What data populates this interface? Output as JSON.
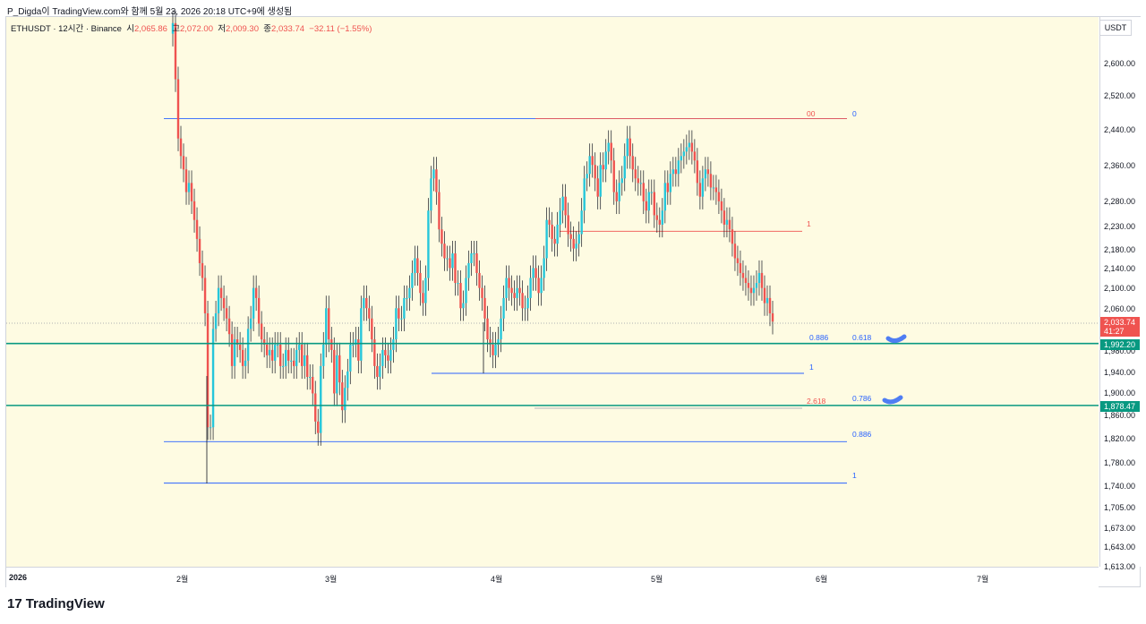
{
  "header": {
    "text": "P_Digda이 TradingView.com와 함께 5월 23, 2026 20:18 UTC+9에 생성됨"
  },
  "legend": {
    "symbol": "ETHUSDT · 12시간 · Binance",
    "open_label": "시",
    "open": "2,065.86",
    "high_label": "고",
    "high": "2,072.00",
    "low_label": "저",
    "low": "2,009.30",
    "close_label": "종",
    "close": "2,033.74",
    "change": "−32.11 (−1.55%)"
  },
  "price_axis": {
    "currency": "USDT",
    "ticks": [
      "2,600.00",
      "2,520.00",
      "2,440.00",
      "2,360.00",
      "2,280.00",
      "2,230.00",
      "2,180.00",
      "2,140.00",
      "2,100.00",
      "2,060.00",
      "1,980.00",
      "1,940.00",
      "1,900.00",
      "1,860.00",
      "1,820.00",
      "1,780.00",
      "1,740.00",
      "1,705.00",
      "1,673.00",
      "1,643.00",
      "1,613.00"
    ],
    "last_price": "2,033.74",
    "countdown": "41:27",
    "line1_price": "1,992.20",
    "line2_price": "1,878.47"
  },
  "time_axis": {
    "labels": [
      "2026",
      "2월",
      "3월",
      "4월",
      "5월",
      "6월",
      "7월"
    ]
  },
  "fib_labels": {
    "upper_zero_left": "00",
    "upper_zero_right": "0",
    "upper_one": "1",
    "mid_0886": "0.886",
    "mid_0618": "0.618",
    "mid_one": "1",
    "mid_2618": "2.618",
    "mid_0786": "0.786",
    "low_0886": "0.886",
    "low_one": "1"
  },
  "footer": {
    "brand": "TradingView",
    "logo": "17"
  },
  "colors": {
    "up": "#26c6da",
    "down": "#ef5350",
    "hline": "#089981",
    "fib_blue": "#2962ff",
    "fib_red": "#ef5350",
    "plot_bg": "#fefbe2",
    "marker": "#4f7df3"
  },
  "chart_data": {
    "type": "candlestick",
    "symbol": "ETHUSDT",
    "interval": "12시간",
    "exchange": "Binance",
    "log_scale": true,
    "ylim": [
      1613,
      2660
    ],
    "horizontal_lines": [
      1992.2,
      1878.47
    ],
    "fib_levels_upper": [
      2466,
      2216
    ],
    "fib_levels_lower": [
      2466,
      1815,
      1745
    ],
    "candles_close": [
      2700,
      2560,
      2420,
      2380,
      2350,
      2300,
      2320,
      2280,
      2240,
      2200,
      2150,
      2120,
      2050,
      1840,
      1840,
      2020,
      2050,
      2100,
      2080,
      2060,
      2040,
      2010,
      1950,
      2000,
      1990,
      1980,
      1950,
      1960,
      2020,
      2040,
      2100,
      2080,
      2030,
      2000,
      1990,
      1970,
      1980,
      1960,
      1990,
      1990,
      1950,
      1950,
      1980,
      1960,
      1960,
      1950,
      1980,
      1990,
      1950,
      1970,
      1930,
      1930,
      1900,
      1850,
      1830,
      1950,
      1990,
      2060,
      2000,
      1980,
      1900,
      1970,
      1920,
      1870,
      1910,
      1940,
      1990,
      1990,
      2000,
      1960,
      2060,
      2080,
      2060,
      2040,
      2000,
      1950,
      1930,
      1950,
      1980,
      1970,
      1960,
      1980,
      2000,
      2060,
      2040,
      2040,
      2080,
      2080,
      2100,
      2130,
      2160,
      2130,
      2090,
      2070,
      2120,
      2260,
      2330,
      2350,
      2300,
      2220,
      2190,
      2160,
      2160,
      2140,
      2170,
      2110,
      2110,
      2060,
      2070,
      2120,
      2150,
      2170,
      2170,
      2130,
      2100,
      2080,
      2040,
      2000,
      1990,
      1970,
      1990,
      2000,
      2040,
      2080,
      2120,
      2100,
      2090,
      2080,
      2100,
      2090,
      2060,
      2060,
      2080,
      2120,
      2140,
      2120,
      2090,
      2120,
      2160,
      2240,
      2230,
      2200,
      2190,
      2230,
      2260,
      2290,
      2250,
      2210,
      2200,
      2180,
      2190,
      2210,
      2260,
      2330,
      2340,
      2380,
      2360,
      2330,
      2290,
      2360,
      2350,
      2390,
      2410,
      2370,
      2300,
      2280,
      2320,
      2330,
      2380,
      2420,
      2380,
      2350,
      2330,
      2320,
      2320,
      2280,
      2260,
      2300,
      2300,
      2250,
      2240,
      2230,
      2260,
      2320,
      2300,
      2340,
      2350,
      2340,
      2370,
      2380,
      2390,
      2400,
      2410,
      2390,
      2370,
      2320,
      2290,
      2330,
      2350,
      2340,
      2310,
      2310,
      2300,
      2280,
      2260,
      2230,
      2240,
      2220,
      2190,
      2160,
      2150,
      2130,
      2120,
      2110,
      2100,
      2090,
      2100,
      2110,
      2130,
      2100,
      2070,
      2080,
      2050,
      2034
    ]
  }
}
